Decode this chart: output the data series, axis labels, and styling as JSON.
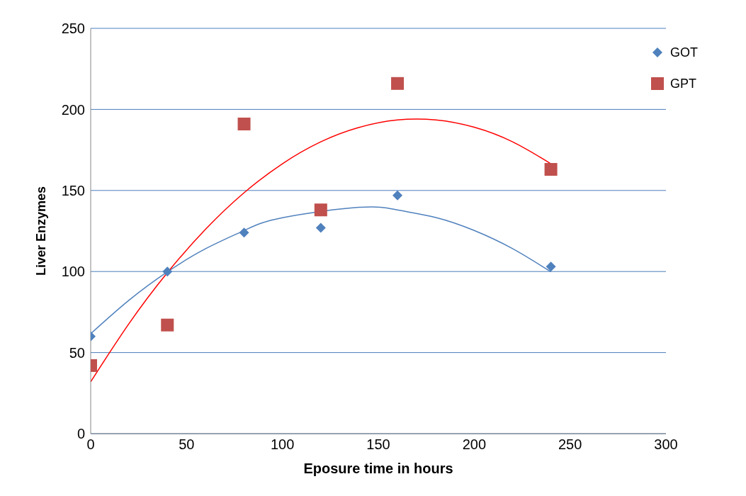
{
  "chart_data": {
    "type": "scatter",
    "xlabel": "Eposure time in hours",
    "ylabel": "Liver Enzymes",
    "xlim": [
      0,
      300
    ],
    "xticks": [
      0,
      50,
      100,
      150,
      200,
      250,
      300
    ],
    "ylim": [
      0,
      250
    ],
    "yticks": [
      0,
      50,
      100,
      150,
      200,
      250
    ],
    "grid": "y",
    "legend": "top right",
    "series": [
      {
        "name": "GOT",
        "color": "#4f81bd",
        "marker": "diamond",
        "x": [
          0,
          40,
          80,
          120,
          160,
          240
        ],
        "values": [
          60,
          100,
          124,
          127,
          147,
          103
        ]
      },
      {
        "name": "GPT",
        "color": "#c0504d",
        "marker": "square",
        "x": [
          0,
          40,
          80,
          120,
          160,
          240
        ],
        "values": [
          42,
          67,
          191,
          138,
          216,
          163
        ]
      },
      {
        "type": "line",
        "color": "#4f81bd",
        "marker": "none",
        "x": [
          0,
          20,
          40,
          60,
          80,
          100,
          140,
          160,
          180,
          200,
          220,
          240
        ],
        "values": [
          61.6,
          82.3,
          99.8,
          114.1,
          125.3,
          133.2,
          139.6,
          138.0,
          133.3,
          125.3,
          114.1,
          99.8
        ]
      },
      {
        "type": "line",
        "color": "#ff0000",
        "marker": "none",
        "x": [
          0,
          20,
          40,
          60,
          80,
          100,
          120,
          140,
          160,
          180,
          200,
          220,
          240
        ],
        "values": [
          32,
          67.9,
          99.3,
          126.2,
          148.6,
          166.5,
          180.0,
          188.9,
          193.5,
          193.5,
          189.0,
          180.0,
          166.5
        ]
      }
    ]
  }
}
